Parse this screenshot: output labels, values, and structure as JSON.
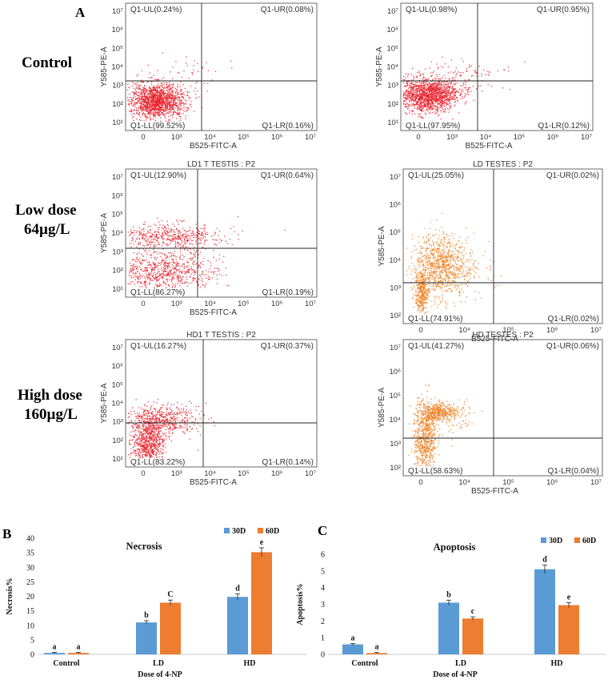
{
  "panel_a_label": "A",
  "panel_b_label": "B",
  "panel_c_label": "C",
  "rows": [
    {
      "label_lines": [
        "Control"
      ]
    },
    {
      "label_lines": [
        "Low dose",
        "64µg/L"
      ]
    },
    {
      "label_lines": [
        "High dose",
        "160µg/L"
      ]
    }
  ],
  "colors": {
    "red": "#e8202a",
    "orange": "#f07e1e",
    "blue30": "#5b9bd5",
    "orange60": "#ed7d31"
  },
  "chart_data": [
    {
      "type": "scatter",
      "style": "red",
      "title": "",
      "xlabel": "B525-FITC-A",
      "ylabel": "Y585-PE-A",
      "xticks": [
        "0",
        "10³",
        "10⁴",
        "10⁵",
        "10⁶",
        "10⁷"
      ],
      "yticks": [
        "10¹",
        "10²",
        "10³",
        "10⁴",
        "10⁵",
        "10⁶",
        "10⁷"
      ],
      "quadrants": {
        "UL": "Q1-UL(0.24%)",
        "UR": "Q1-UR(0.08%)",
        "LL": "Q1-LL(99.52%)",
        "LR": "Q1-LR(0.16%)"
      }
    },
    {
      "type": "scatter",
      "style": "red",
      "title": "",
      "xlabel": "B525-FITC-A",
      "ylabel": "Y585-PE-A",
      "xticks": [
        "0",
        "10³",
        "10⁴",
        "10⁵",
        "10⁶",
        "10⁷"
      ],
      "yticks": [
        "10¹",
        "10²",
        "10³",
        "10⁴",
        "10⁵",
        "10⁶",
        "10⁷"
      ],
      "quadrants": {
        "UL": "Q1-UL(0.98%)",
        "UR": "Q1-UR(0.95%)",
        "LL": "Q1-LL(97.95%)",
        "LR": "Q1-LR(0.12%)"
      }
    },
    {
      "type": "scatter",
      "style": "red",
      "title": "LD1 T TESTIS : P2",
      "xlabel": "B525-FITC-A",
      "ylabel": "Y585-PE-A",
      "xticks": [
        "0",
        "10³",
        "10⁴",
        "10⁵",
        "10⁶",
        "10⁷"
      ],
      "yticks": [
        "10¹",
        "10²",
        "10³",
        "10⁴",
        "10⁵",
        "10⁶",
        "10⁷"
      ],
      "quadrants": {
        "UL": "Q1-UL(12.90%)",
        "UR": "Q1-UR(0.64%)",
        "LL": "Q1-LL(86.27%)",
        "LR": "Q1-LR(0.19%)"
      }
    },
    {
      "type": "scatter",
      "style": "orange",
      "title": "LD TESTES : P2",
      "xlabel": "B525-FITC-A",
      "ylabel": "Y585-PE-A",
      "xticks": [
        "0",
        "10⁴",
        "10⁵",
        "10⁶",
        "10⁷"
      ],
      "yticks": [
        "10²",
        "10³",
        "10⁴",
        "10⁵",
        "10⁶",
        "10⁷"
      ],
      "quadrants": {
        "UL": "Q1-UL(25.05%)",
        "UR": "Q1-UR(0.02%)",
        "LL": "Q1-LL(74.91%)",
        "LR": "Q1-LR(0.02%)"
      }
    },
    {
      "type": "scatter",
      "style": "red",
      "title": "HD1 T TESTIS : P2",
      "xlabel": "B525-FITC-A",
      "ylabel": "Y585-PE-A",
      "xticks": [
        "0",
        "10³",
        "10⁴",
        "10⁵",
        "10⁶",
        "10⁷"
      ],
      "yticks": [
        "10¹",
        "10²",
        "10³",
        "10⁴",
        "10⁵",
        "10⁶",
        "10⁷"
      ],
      "quadrants": {
        "UL": "Q1-UL(16.27%)",
        "UR": "Q1-UR(0.37%)",
        "LL": "Q1-LL(83.22%)",
        "LR": "Q1-LR(0.14%)"
      }
    },
    {
      "type": "scatter",
      "style": "orange",
      "title": "HD TESTES : P2",
      "xlabel": "B525-FITC-A",
      "ylabel": "Y585-PE-A",
      "xticks": [
        "0",
        "10⁴",
        "10⁵",
        "10⁶",
        "10⁷"
      ],
      "yticks": [
        "10²",
        "10³",
        "10⁴",
        "10⁵",
        "10⁶",
        "10⁷"
      ],
      "quadrants": {
        "UL": "Q1-UL(41.27%)",
        "UR": "Q1-UR(0.06%)",
        "LL": "Q1-LL(58.63%)",
        "LR": "Q1-LR(0.04%)"
      }
    },
    {
      "type": "bar",
      "title": "Necrosis",
      "xlabel": "Dose of 4-NP",
      "ylabel": "Necrosis%",
      "categories": [
        "Control",
        "LD",
        "HD"
      ],
      "ylim": [
        0,
        40
      ],
      "yticks": [
        0,
        5,
        10,
        15,
        20,
        25,
        30,
        35,
        40
      ],
      "series": [
        {
          "name": "30D",
          "values": [
            0.5,
            11,
            19.8
          ],
          "errors": [
            0.2,
            0.6,
            1.0
          ],
          "letters": [
            "a",
            "b",
            "d"
          ]
        },
        {
          "name": "60D",
          "values": [
            0.5,
            17.8,
            35.2
          ],
          "errors": [
            0.2,
            0.9,
            1.5
          ],
          "letters": [
            "a",
            "C",
            "e"
          ]
        }
      ]
    },
    {
      "type": "bar",
      "title": "Apoptosis",
      "xlabel": "Dose of 4-NP",
      "ylabel": "Apoptosis%",
      "categories": [
        "Control",
        "LD",
        "HD"
      ],
      "ylim": [
        0,
        6
      ],
      "yticks": [
        0,
        1,
        2,
        3,
        4,
        5,
        6
      ],
      "series": [
        {
          "name": "30D",
          "values": [
            0.6,
            3.1,
            5.1
          ],
          "errors": [
            0.05,
            0.15,
            0.25
          ],
          "letters": [
            "a",
            "b",
            "d"
          ]
        },
        {
          "name": "60D",
          "values": [
            0.08,
            2.15,
            2.95
          ],
          "errors": [
            0.03,
            0.1,
            0.15
          ],
          "letters": [
            "a",
            "c",
            "e"
          ]
        }
      ]
    }
  ]
}
